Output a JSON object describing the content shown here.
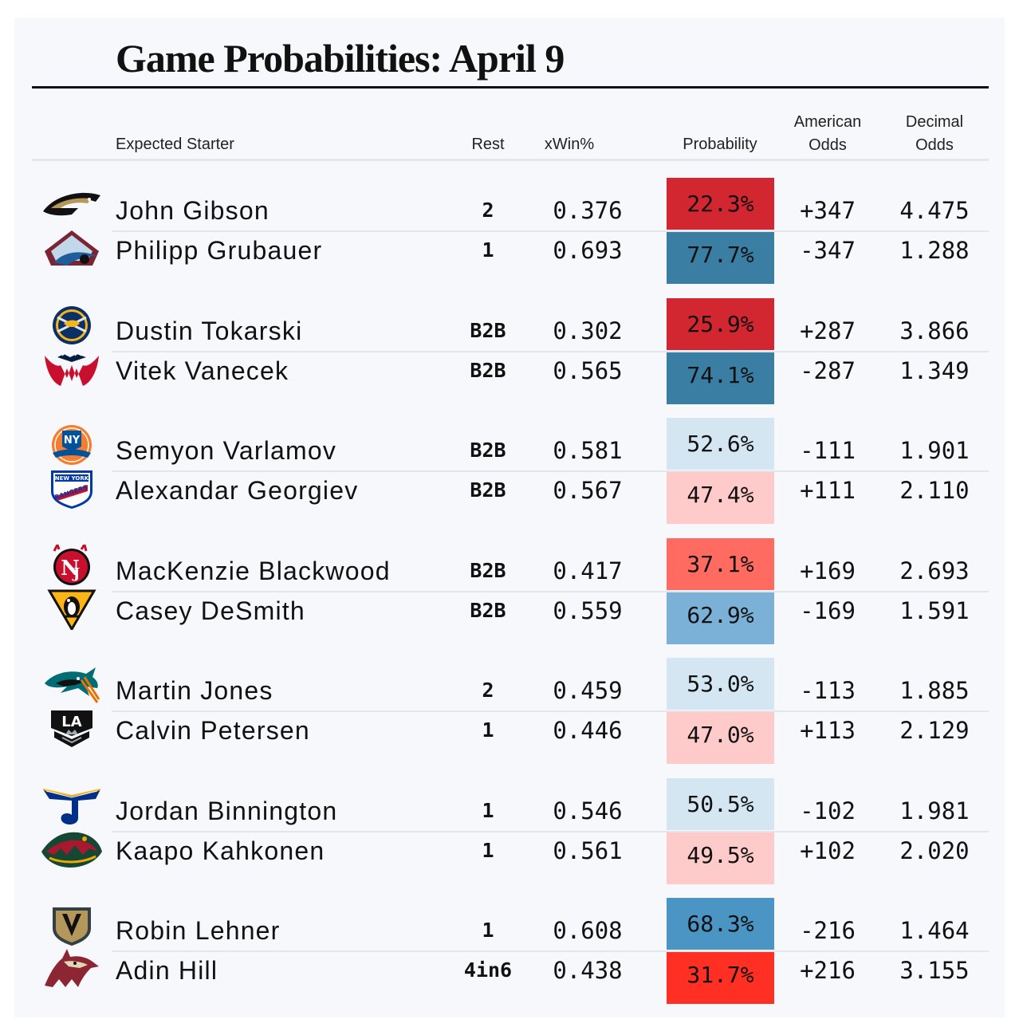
{
  "chart_data": {
    "type": "table",
    "title": "Game Probabilities: April 9",
    "columns": [
      "Expected Starter",
      "Rest",
      "xWin%",
      "Probability",
      "American Odds",
      "Decimal Odds"
    ],
    "colors": {
      "strong_red": "#d22630",
      "red": "#ff6b61",
      "bright_red": "#ff2f24",
      "light_red": "#ffcaca",
      "strong_blue": "#3b7ea3",
      "blue": "#4a95c4",
      "mid_blue": "#7bb1d6",
      "light_blue": "#d4e6f2"
    },
    "games": [
      {
        "rows": [
          {
            "team_icon": "anaheim-ducks-logo",
            "starter": "John Gibson",
            "rest": "2",
            "xwin": "0.376",
            "probability": "22.3%",
            "prob_value": 22.3,
            "prob_color": "#d22630",
            "american": "+347",
            "decimal": "4.475"
          },
          {
            "team_icon": "colorado-avalanche-logo",
            "starter": "Philipp Grubauer",
            "rest": "1",
            "xwin": "0.693",
            "probability": "77.7%",
            "prob_value": 77.7,
            "prob_color": "#3b7ea3",
            "american": "-347",
            "decimal": "1.288"
          }
        ]
      },
      {
        "rows": [
          {
            "team_icon": "buffalo-sabres-logo",
            "starter": "Dustin Tokarski",
            "rest": "B2B",
            "xwin": "0.302",
            "probability": "25.9%",
            "prob_value": 25.9,
            "prob_color": "#d22630",
            "american": "+287",
            "decimal": "3.866"
          },
          {
            "team_icon": "washington-capitals-logo",
            "starter": "Vitek Vanecek",
            "rest": "B2B",
            "xwin": "0.565",
            "probability": "74.1%",
            "prob_value": 74.1,
            "prob_color": "#3b7ea3",
            "american": "-287",
            "decimal": "1.349"
          }
        ]
      },
      {
        "rows": [
          {
            "team_icon": "new-york-islanders-logo",
            "starter": "Semyon Varlamov",
            "rest": "B2B",
            "xwin": "0.581",
            "probability": "52.6%",
            "prob_value": 52.6,
            "prob_color": "#d4e6f2",
            "american": "-111",
            "decimal": "1.901"
          },
          {
            "team_icon": "new-york-rangers-logo",
            "starter": "Alexandar Georgiev",
            "rest": "B2B",
            "xwin": "0.567",
            "probability": "47.4%",
            "prob_value": 47.4,
            "prob_color": "#ffcaca",
            "american": "+111",
            "decimal": "2.110"
          }
        ]
      },
      {
        "rows": [
          {
            "team_icon": "new-jersey-devils-logo",
            "starter": "MacKenzie Blackwood",
            "rest": "B2B",
            "xwin": "0.417",
            "probability": "37.1%",
            "prob_value": 37.1,
            "prob_color": "#ff6b61",
            "american": "+169",
            "decimal": "2.693"
          },
          {
            "team_icon": "pittsburgh-penguins-logo",
            "starter": "Casey DeSmith",
            "rest": "B2B",
            "xwin": "0.559",
            "probability": "62.9%",
            "prob_value": 62.9,
            "prob_color": "#7bb1d6",
            "american": "-169",
            "decimal": "1.591"
          }
        ]
      },
      {
        "rows": [
          {
            "team_icon": "san-jose-sharks-logo",
            "starter": "Martin Jones",
            "rest": "2",
            "xwin": "0.459",
            "probability": "53.0%",
            "prob_value": 53.0,
            "prob_color": "#d4e6f2",
            "american": "-113",
            "decimal": "1.885"
          },
          {
            "team_icon": "los-angeles-kings-logo",
            "starter": "Calvin Petersen",
            "rest": "1",
            "xwin": "0.446",
            "probability": "47.0%",
            "prob_value": 47.0,
            "prob_color": "#ffcaca",
            "american": "+113",
            "decimal": "2.129"
          }
        ]
      },
      {
        "rows": [
          {
            "team_icon": "st-louis-blues-logo",
            "starter": "Jordan Binnington",
            "rest": "1",
            "xwin": "0.546",
            "probability": "50.5%",
            "prob_value": 50.5,
            "prob_color": "#d4e6f2",
            "american": "-102",
            "decimal": "1.981"
          },
          {
            "team_icon": "minnesota-wild-logo",
            "starter": "Kaapo Kahkonen",
            "rest": "1",
            "xwin": "0.561",
            "probability": "49.5%",
            "prob_value": 49.5,
            "prob_color": "#ffcaca",
            "american": "+102",
            "decimal": "2.020"
          }
        ]
      },
      {
        "rows": [
          {
            "team_icon": "vegas-golden-knights-logo",
            "starter": "Robin Lehner",
            "rest": "1",
            "xwin": "0.608",
            "probability": "68.3%",
            "prob_value": 68.3,
            "prob_color": "#4a95c4",
            "american": "-216",
            "decimal": "1.464"
          },
          {
            "team_icon": "arizona-coyotes-logo",
            "starter": "Adin Hill",
            "rest": "4in6",
            "xwin": "0.438",
            "probability": "31.7%",
            "prob_value": 31.7,
            "prob_color": "#ff2f24",
            "american": "+216",
            "decimal": "3.155"
          }
        ]
      }
    ]
  },
  "header": {
    "starter": "Expected Starter",
    "rest": "Rest",
    "xwin": "xWin%",
    "probability": "Probability",
    "american_line1": "American",
    "american_line2": "Odds",
    "decimal_line1": "Decimal",
    "decimal_line2": "Odds"
  }
}
